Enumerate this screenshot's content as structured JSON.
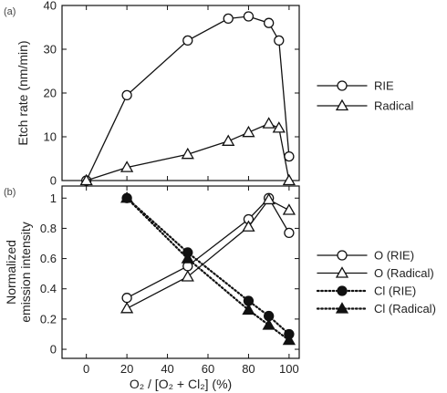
{
  "chart_data": [
    {
      "panel": "(a)",
      "type": "line",
      "xlabel": "O₂ / [O₂ + Cl₂] (%)",
      "ylabel": "Etch rate  (nm/min)",
      "xlim": [
        -12,
        105
      ],
      "ylim": [
        0,
        40
      ],
      "yticks": [
        0,
        10,
        20,
        30,
        40
      ],
      "xticks": [
        0,
        20,
        40,
        60,
        80,
        100
      ],
      "legend_position": "right",
      "series": [
        {
          "name": "RIE",
          "marker": "circle-open",
          "line": "solid",
          "x": [
            0,
            20,
            50,
            70,
            80,
            90,
            95,
            100
          ],
          "y": [
            0,
            19.5,
            32,
            37,
            37.5,
            36,
            32,
            5.5
          ]
        },
        {
          "name": "Radical",
          "marker": "triangle-open",
          "line": "solid",
          "x": [
            0,
            20,
            50,
            70,
            80,
            90,
            95,
            100
          ],
          "y": [
            0,
            3,
            6,
            9,
            11,
            13,
            12,
            0
          ]
        }
      ]
    },
    {
      "panel": "(b)",
      "type": "line",
      "xlabel": "O₂ / [O₂ + Cl₂] (%)",
      "ylabel": [
        "Normalized",
        "emission intensity"
      ],
      "xlim": [
        -12,
        105
      ],
      "ylim": [
        -0.06,
        1.08
      ],
      "yticks": [
        0,
        0.2,
        0.4,
        0.6,
        0.8,
        1
      ],
      "xticks": [
        0,
        20,
        40,
        60,
        80,
        100
      ],
      "legend_position": "right",
      "series": [
        {
          "name": "O (RIE)",
          "marker": "circle-open",
          "line": "solid",
          "x": [
            20,
            50,
            80,
            90,
            100
          ],
          "y": [
            0.34,
            0.55,
            0.86,
            1.0,
            0.77
          ]
        },
        {
          "name": "O (Radical)",
          "marker": "triangle-open",
          "line": "solid",
          "x": [
            20,
            50,
            80,
            90,
            100
          ],
          "y": [
            0.27,
            0.48,
            0.81,
            0.99,
            0.92
          ]
        },
        {
          "name": "Cl (RIE)",
          "marker": "circle-filled",
          "line": "dotted",
          "x": [
            20,
            50,
            80,
            90,
            100
          ],
          "y": [
            1.0,
            0.64,
            0.32,
            0.22,
            0.1
          ]
        },
        {
          "name": "Cl (Radical)",
          "marker": "triangle-filled",
          "line": "dotted",
          "x": [
            20,
            50,
            80,
            90,
            100
          ],
          "y": [
            1.0,
            0.6,
            0.26,
            0.16,
            0.06
          ]
        }
      ]
    }
  ]
}
